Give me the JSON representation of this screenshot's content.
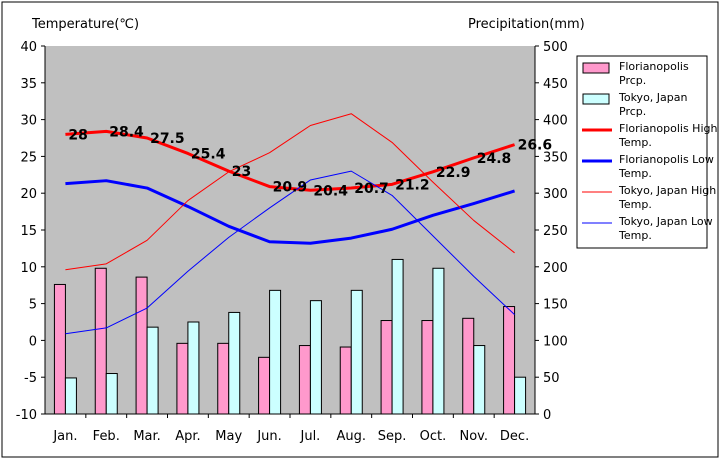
{
  "chart_data": {
    "type": "bar+line",
    "categories": [
      "Jan.",
      "Feb.",
      "Mar.",
      "Apr.",
      "May",
      "Jun.",
      "Jul.",
      "Aug.",
      "Sep.",
      "Oct.",
      "Nov.",
      "Dec."
    ],
    "left_axis": {
      "label": "Temperature(℃)",
      "range": [
        -10,
        40
      ],
      "ticks": [
        -10,
        -5,
        0,
        5,
        10,
        15,
        20,
        25,
        30,
        35,
        40
      ]
    },
    "right_axis": {
      "label": "Precipitation(mm)",
      "range": [
        0,
        500
      ],
      "ticks": [
        0,
        50,
        100,
        150,
        200,
        250,
        300,
        350,
        400,
        450,
        500
      ]
    },
    "grid": false,
    "legend_placement": "right",
    "series": [
      {
        "name": "Florianopolis Prcp.",
        "kind": "bar",
        "axis": "right",
        "color": "#ff99cc",
        "values": [
          176,
          198,
          186,
          96,
          96,
          77,
          93,
          91,
          127,
          127,
          130,
          146
        ]
      },
      {
        "name": "Tokyo, Japan Prcp.",
        "kind": "bar",
        "axis": "right",
        "color": "#ccffff",
        "values": [
          49,
          55,
          118,
          125,
          138,
          168,
          154,
          168,
          210,
          198,
          93,
          50
        ]
      },
      {
        "name": "Florianopolis High Temp.",
        "kind": "line",
        "axis": "left",
        "color": "#ff0000",
        "width": 3,
        "values": [
          28,
          28.4,
          27.5,
          25.4,
          23,
          20.9,
          20.4,
          20.7,
          21.2,
          22.9,
          24.8,
          26.6
        ],
        "labels": [
          "28",
          "28.4",
          "27.5",
          "25.4",
          "23",
          "20.9",
          "20.4",
          "20.7",
          "21.2",
          "22.9",
          "24.8",
          "26.6"
        ]
      },
      {
        "name": "Florianopolis Low Temp.",
        "kind": "line",
        "axis": "left",
        "color": "#0000ff",
        "width": 3,
        "values": [
          21.3,
          21.7,
          20.7,
          18.2,
          15.5,
          13.4,
          13.2,
          13.9,
          15.1,
          17,
          18.6,
          20.3
        ]
      },
      {
        "name": "Tokyo, Japan High Temp.",
        "kind": "line",
        "axis": "left",
        "color": "#ff0000",
        "width": 1,
        "values": [
          9.6,
          10.4,
          13.6,
          19,
          22.9,
          25.5,
          29.2,
          30.8,
          26.9,
          21.5,
          16.3,
          11.9
        ]
      },
      {
        "name": "Tokyo, Japan Low Temp.",
        "kind": "line",
        "axis": "left",
        "color": "#0000ff",
        "width": 1,
        "values": [
          0.9,
          1.7,
          4.4,
          9.4,
          14,
          18,
          21.8,
          23,
          19.7,
          14.2,
          8.7,
          3.5
        ]
      }
    ]
  }
}
